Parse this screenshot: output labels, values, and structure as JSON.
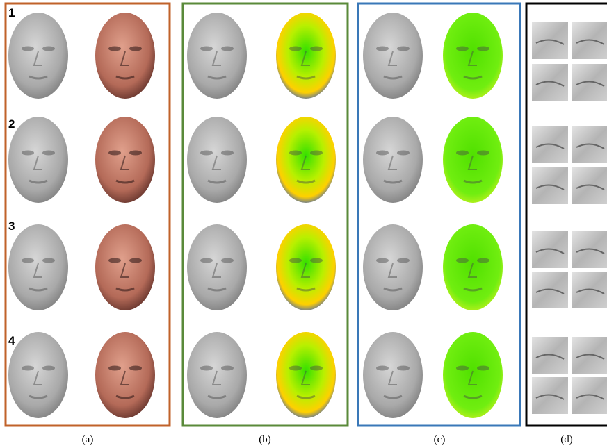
{
  "rows": [
    {
      "label": "1"
    },
    {
      "label": "2"
    },
    {
      "label": "3"
    },
    {
      "label": "4"
    }
  ],
  "panels": [
    {
      "label": "(a)"
    },
    {
      "label": "(b)"
    },
    {
      "label": "(c)"
    },
    {
      "label": "(d)"
    }
  ]
}
